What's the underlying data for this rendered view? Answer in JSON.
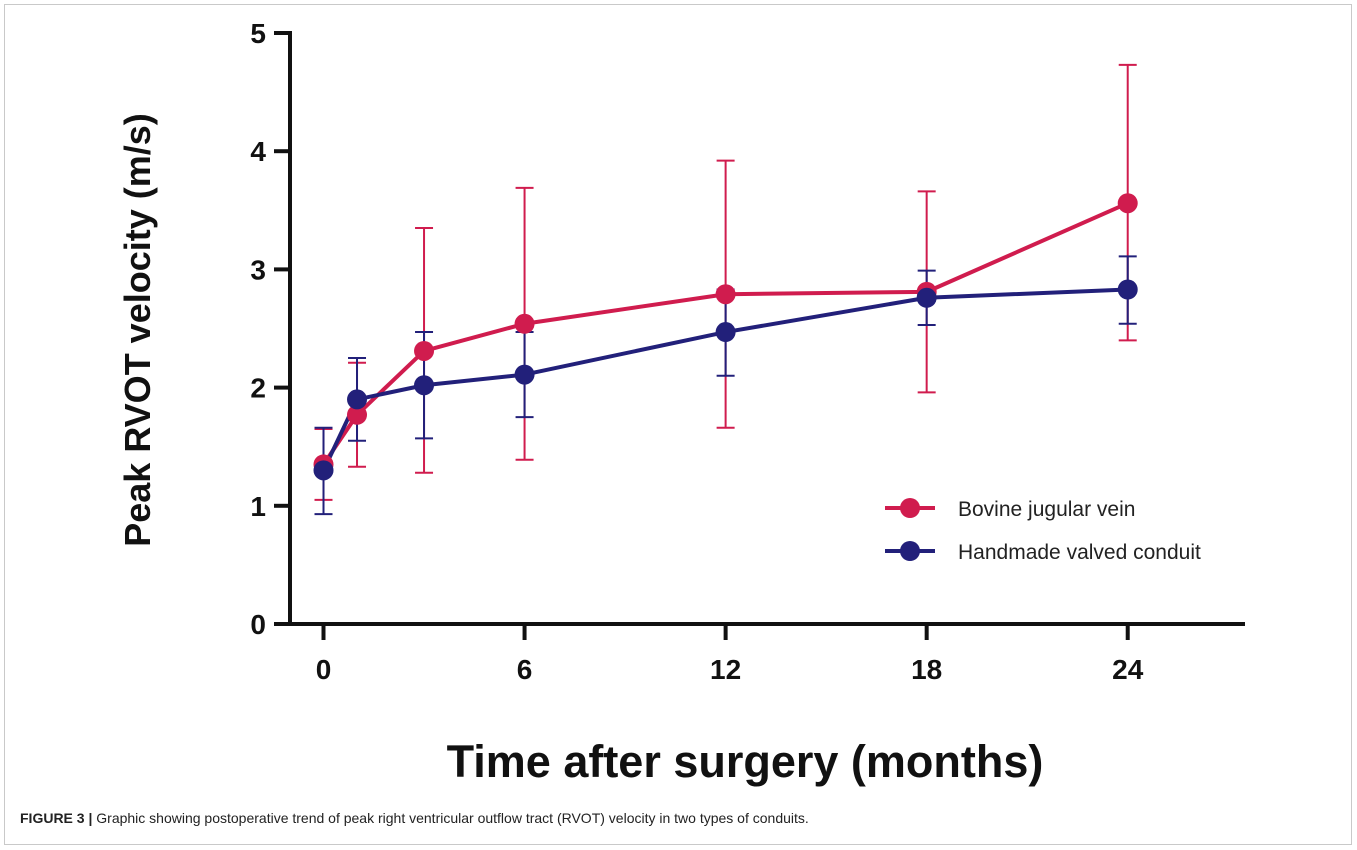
{
  "chart_data": {
    "type": "line",
    "title": "",
    "xlabel": "Time after surgery (months)",
    "ylabel": "Peak RVOT velocity (m/s)",
    "xlim": [
      -1.0,
      27.5
    ],
    "ylim": [
      0,
      5
    ],
    "xticks": [
      0,
      6,
      12,
      18,
      24
    ],
    "yticks": [
      0,
      1,
      2,
      3,
      4,
      5
    ],
    "legend_position": "lower-right",
    "grid": false,
    "series": [
      {
        "name": "Bovine jugular vein",
        "color": "#d01c4e",
        "x": [
          0,
          1,
          3,
          6,
          12,
          18,
          24
        ],
        "y": [
          1.35,
          1.77,
          2.31,
          2.54,
          2.79,
          2.81,
          3.56
        ],
        "err_low": [
          1.05,
          1.33,
          1.28,
          1.39,
          1.66,
          1.96,
          2.4
        ],
        "err_high": [
          1.65,
          2.21,
          3.35,
          3.69,
          3.92,
          3.66,
          4.73
        ]
      },
      {
        "name": "Handmade valved conduit",
        "color": "#22207a",
        "x": [
          0,
          1,
          3,
          6,
          12,
          18,
          24
        ],
        "y": [
          1.3,
          1.9,
          2.02,
          2.11,
          2.47,
          2.76,
          2.83
        ],
        "err_low": [
          0.93,
          1.55,
          1.57,
          1.75,
          2.1,
          2.53,
          2.54
        ],
        "err_high": [
          1.66,
          2.25,
          2.47,
          2.47,
          2.83,
          2.99,
          3.11
        ]
      }
    ]
  },
  "caption": {
    "label": "FIGURE 3 |",
    "text": " Graphic showing postoperative trend of peak right ventricular outflow tract (RVOT) velocity in two types of conduits."
  }
}
